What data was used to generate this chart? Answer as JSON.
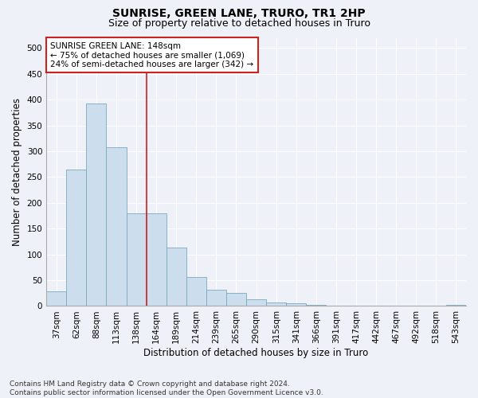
{
  "title": "SUNRISE, GREEN LANE, TRURO, TR1 2HP",
  "subtitle": "Size of property relative to detached houses in Truro",
  "xlabel": "Distribution of detached houses by size in Truro",
  "ylabel": "Number of detached properties",
  "footnote": "Contains HM Land Registry data © Crown copyright and database right 2024.\nContains public sector information licensed under the Open Government Licence v3.0.",
  "bar_color": "#ccdded",
  "bar_edge_color": "#7aaabb",
  "vline_color": "#cc2222",
  "vline_x": 4.5,
  "annotation_text": "SUNRISE GREEN LANE: 148sqm\n← 75% of detached houses are smaller (1,069)\n24% of semi-detached houses are larger (342) →",
  "annotation_box_facecolor": "#ffffff",
  "annotation_box_edgecolor": "#cc2222",
  "categories": [
    "37sqm",
    "62sqm",
    "88sqm",
    "113sqm",
    "138sqm",
    "164sqm",
    "189sqm",
    "214sqm",
    "239sqm",
    "265sqm",
    "290sqm",
    "315sqm",
    "341sqm",
    "366sqm",
    "391sqm",
    "417sqm",
    "442sqm",
    "467sqm",
    "492sqm",
    "518sqm",
    "543sqm"
  ],
  "values": [
    28,
    265,
    393,
    308,
    180,
    180,
    113,
    57,
    32,
    25,
    13,
    7,
    5,
    2,
    1,
    0,
    0,
    0,
    0,
    0,
    3
  ],
  "ylim": [
    0,
    520
  ],
  "yticks": [
    0,
    50,
    100,
    150,
    200,
    250,
    300,
    350,
    400,
    450,
    500
  ],
  "background_color": "#eef2f8",
  "grid_color": "#ffffff",
  "title_fontsize": 10,
  "subtitle_fontsize": 9,
  "tick_fontsize": 7.5,
  "ylabel_fontsize": 8.5,
  "xlabel_fontsize": 8.5,
  "annot_fontsize": 7.5,
  "footnote_fontsize": 6.5
}
